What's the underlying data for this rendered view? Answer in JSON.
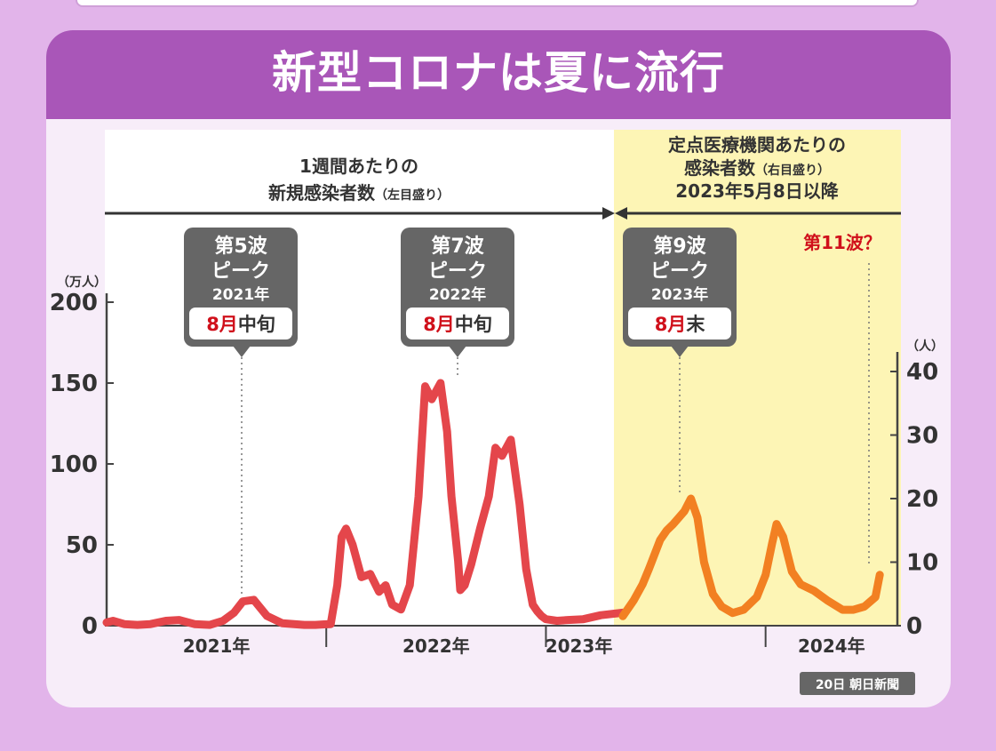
{
  "title": "新型コロナは夏に流行",
  "source": "20日 朝日新聞",
  "chart_data": {
    "type": "line",
    "left_axis": {
      "unit": "（万人）",
      "ticks": [
        0,
        50,
        100,
        150,
        200
      ],
      "ylim": [
        0,
        200
      ]
    },
    "right_axis": {
      "unit": "（人）",
      "ticks": [
        0,
        10,
        20,
        30,
        40
      ],
      "ylim": [
        0,
        40
      ]
    },
    "x_labels": [
      "2021年",
      "2022年",
      "2023年",
      "2024年"
    ],
    "periods": [
      {
        "label_line1": "1週間あたりの",
        "label_line2": "新規感染者数",
        "label_note": "（左目盛り）"
      },
      {
        "label_line1": "定点医療機関あたりの",
        "label_line2": "感染者数",
        "label_note": "（右目盛り）",
        "label_line3": "2023年5月8日以降"
      }
    ],
    "callouts": [
      {
        "wave": "第5波",
        "peak": "ピーク",
        "year": "2021年",
        "month": "8月",
        "timing": "中旬"
      },
      {
        "wave": "第7波",
        "peak": "ピーク",
        "year": "2022年",
        "month": "8月",
        "timing": "中旬"
      },
      {
        "wave": "第9波",
        "peak": "ピーク",
        "year": "2023年",
        "month": "8月",
        "timing": "末"
      }
    ],
    "next_wave_label": "第11波？",
    "colors": {
      "series_left": "#e4464b",
      "series_right": "#f28022",
      "accent_red": "#d0101b",
      "callout_bg": "#666666",
      "yellow_region": "#fdf5b5",
      "header": "#a956b8"
    },
    "series": [
      {
        "axis": "left",
        "x": [
          2021.0,
          2021.03,
          2021.08,
          2021.14,
          2021.2,
          2021.27,
          2021.33,
          2021.4,
          2021.47,
          2021.53,
          2021.58,
          2021.62,
          2021.67,
          2021.73,
          2021.8,
          2021.9,
          2021.95,
          2021.99,
          2022.02,
          2022.05,
          2022.07,
          2022.09,
          2022.12,
          2022.16,
          2022.2,
          2022.24,
          2022.27,
          2022.3,
          2022.34,
          2022.38,
          2022.42,
          2022.45,
          2022.48,
          2022.52,
          2022.55,
          2022.57,
          2022.6,
          2022.61,
          2022.63,
          2022.66,
          2022.7,
          2022.74,
          2022.77,
          2022.8,
          2022.84,
          2022.88,
          2022.91,
          2022.94,
          2022.96,
          2022.98,
          2023.0,
          2023.05,
          2023.1,
          2023.17,
          2023.25,
          2023.35
        ],
        "y": [
          2,
          3,
          1,
          0.5,
          1,
          3,
          3.5,
          1,
          0.5,
          3,
          8,
          15,
          16,
          6,
          1.5,
          0.5,
          0.5,
          0.8,
          1,
          25,
          55,
          60,
          50,
          30,
          32,
          21,
          25,
          13,
          10,
          25,
          80,
          148,
          140,
          150,
          120,
          80,
          40,
          22,
          25,
          38,
          60,
          80,
          110,
          105,
          115,
          75,
          35,
          13,
          9,
          6,
          4,
          3,
          3.5,
          4,
          6.5,
          8
        ]
      },
      {
        "axis": "right",
        "x": [
          2023.35,
          2023.4,
          2023.44,
          2023.47,
          2023.52,
          2023.55,
          2023.58,
          2023.63,
          2023.66,
          2023.69,
          2023.72,
          2023.76,
          2023.8,
          2023.85,
          2023.9,
          2023.96,
          2024.0,
          2024.03,
          2024.05,
          2024.08,
          2024.12,
          2024.16,
          2024.22,
          2024.28,
          2024.35,
          2024.4,
          2024.45,
          2024.5,
          2024.52
        ],
        "y": [
          1.5,
          4,
          6.5,
          9,
          13.5,
          15,
          16,
          18,
          20,
          17,
          10,
          5,
          3,
          2,
          2.5,
          4.5,
          8,
          13,
          16,
          14,
          8.5,
          6.5,
          5.5,
          4,
          2.5,
          2.5,
          3,
          4.5,
          8
        ]
      }
    ]
  }
}
